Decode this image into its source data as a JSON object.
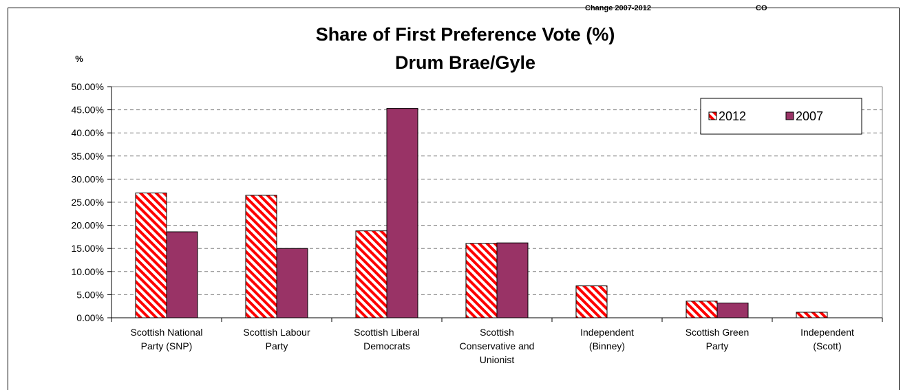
{
  "top_note": {
    "label": "Change 2007-2012",
    "value": "CO"
  },
  "chart_data": {
    "type": "bar",
    "title": "Share of First Preference Vote (%)",
    "subtitle": "Drum Brae/Gyle",
    "ylabel": "%",
    "xlabel": "",
    "ylim": [
      0,
      50
    ],
    "yticks": [
      "0.00%",
      "5.00%",
      "10.00%",
      "15.00%",
      "20.00%",
      "25.00%",
      "30.00%",
      "35.00%",
      "40.00%",
      "45.00%",
      "50.00%"
    ],
    "grid": true,
    "legend_position": "top-right",
    "categories": [
      [
        "Scottish National",
        "Party (SNP)"
      ],
      [
        "Scottish Labour",
        "Party"
      ],
      [
        "Scottish Liberal",
        "Democrats"
      ],
      [
        "Scottish",
        "Conservative and",
        "Unionist"
      ],
      [
        "Independent",
        "(Binney)"
      ],
      [
        "Scottish Green",
        "Party"
      ],
      [
        "Independent",
        "(Scott)"
      ]
    ],
    "series": [
      {
        "name": "2012",
        "pattern": "red-diagonal-hatch",
        "color": "#ff0000",
        "values": [
          27.0,
          26.5,
          18.8,
          16.1,
          6.9,
          3.6,
          1.2
        ]
      },
      {
        "name": "2007",
        "pattern": "solid",
        "color": "#993366",
        "values": [
          18.6,
          15.0,
          45.3,
          16.2,
          0,
          3.2,
          0
        ]
      }
    ]
  }
}
